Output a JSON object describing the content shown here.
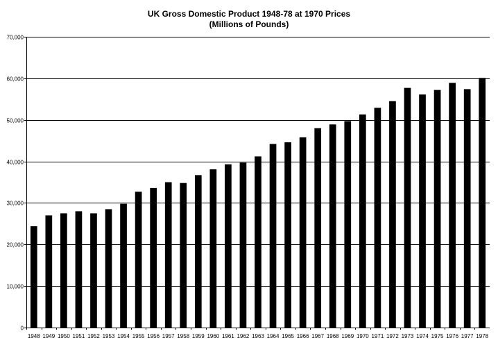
{
  "chart_data": {
    "type": "bar",
    "title": "UK Gross Domestic Product 1948-78 at 1970 Prices",
    "subtitle": "(Millions of Pounds)",
    "xlabel": "",
    "ylabel": "",
    "ylim": [
      0,
      70000
    ],
    "yticks": [
      "0",
      "10,000",
      "20,000",
      "30,000",
      "40,000",
      "50,000",
      "60,000",
      "70,000"
    ],
    "categories": [
      "1948",
      "1949",
      "1950",
      "1951",
      "1952",
      "1953",
      "1954",
      "1955",
      "1956",
      "1957",
      "1958",
      "1959",
      "1960",
      "1961",
      "1962",
      "1963",
      "1964",
      "1965",
      "1966",
      "1967",
      "1968",
      "1969",
      "1970",
      "1971",
      "1972",
      "1973",
      "1974",
      "1975",
      "1976",
      "1977",
      "1978"
    ],
    "values": [
      24400,
      27000,
      27500,
      28000,
      27500,
      28500,
      29800,
      32700,
      33600,
      35000,
      34800,
      36700,
      38100,
      39300,
      39700,
      41200,
      44200,
      44600,
      45800,
      48000,
      48900,
      49700,
      51300,
      52900,
      54500,
      57700,
      56100,
      57200,
      58900,
      57400,
      60100
    ],
    "grid": true,
    "legend": "none",
    "bar_color": "#000000"
  }
}
